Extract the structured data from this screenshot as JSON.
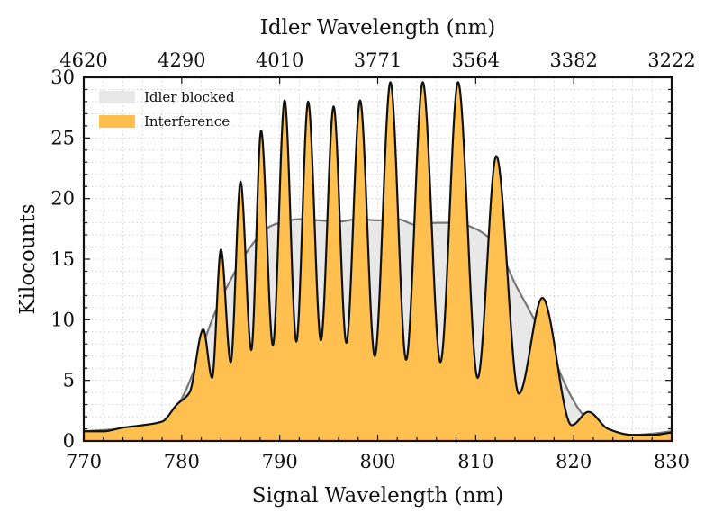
{
  "chart_data": {
    "type": "area",
    "title": "",
    "xlabel": "Signal Wavelength (nm)",
    "ylabel": "Kilocounts",
    "x2label": "Idler Wavelength (nm)",
    "xlim": [
      770,
      830
    ],
    "ylim": [
      0,
      30
    ],
    "grid": true,
    "legend_position": "top-left",
    "x_ticks": [
      "770",
      "780",
      "790",
      "800",
      "810",
      "820",
      "830"
    ],
    "y_ticks": [
      "0",
      "5",
      "10",
      "15",
      "20",
      "25",
      "30"
    ],
    "x2_ticks": [
      "4620",
      "4290",
      "4010",
      "3771",
      "3564",
      "3382",
      "3222"
    ],
    "series": [
      {
        "name": "Idler blocked",
        "color": "#e8e8e8",
        "line_color": "#777777",
        "x": [
          770,
          774,
          777,
          779,
          780,
          781,
          782,
          783,
          784,
          785,
          786,
          787,
          788,
          789,
          790,
          791,
          792,
          794,
          796,
          798,
          800,
          802,
          804,
          806,
          808,
          810,
          811,
          812,
          813,
          814,
          815,
          816,
          817,
          818,
          819,
          820,
          821,
          822,
          824,
          826,
          828,
          830
        ],
        "y": [
          0.8,
          1.0,
          1.2,
          2.2,
          3.5,
          5.3,
          7.5,
          9.8,
          11.7,
          13.3,
          14.8,
          16.0,
          17.0,
          17.7,
          18.0,
          18.2,
          18.3,
          18.2,
          18.1,
          18.3,
          18.2,
          18.3,
          17.8,
          18.0,
          18.0,
          17.5,
          17.0,
          16.3,
          14.8,
          13.0,
          11.5,
          10.0,
          8.5,
          6.8,
          4.9,
          3.3,
          2.1,
          1.3,
          0.8,
          0.5,
          0.6,
          0.8
        ]
      },
      {
        "name": "Interference",
        "color": "#ffc04f",
        "line_color": "#111111",
        "peaks": [
          {
            "x": 782.2,
            "y": 9.2
          },
          {
            "x": 784.0,
            "y": 15.8
          },
          {
            "x": 786.0,
            "y": 21.4
          },
          {
            "x": 788.1,
            "y": 25.6
          },
          {
            "x": 790.5,
            "y": 28.1
          },
          {
            "x": 792.9,
            "y": 28.0
          },
          {
            "x": 795.5,
            "y": 27.6
          },
          {
            "x": 798.2,
            "y": 28.1
          },
          {
            "x": 801.3,
            "y": 29.6
          },
          {
            "x": 804.6,
            "y": 29.6
          },
          {
            "x": 808.2,
            "y": 29.6
          },
          {
            "x": 812.1,
            "y": 23.5
          },
          {
            "x": 816.8,
            "y": 11.8
          },
          {
            "x": 821.5,
            "y": 2.4
          }
        ],
        "troughs": [
          {
            "x": 770.0,
            "y": 0.8
          },
          {
            "x": 772.0,
            "y": 0.8
          },
          {
            "x": 774.0,
            "y": 1.1
          },
          {
            "x": 776.0,
            "y": 1.3
          },
          {
            "x": 778.0,
            "y": 1.6
          },
          {
            "x": 779.5,
            "y": 3.0
          },
          {
            "x": 780.8,
            "y": 4.0
          },
          {
            "x": 783.1,
            "y": 5.2
          },
          {
            "x": 785.0,
            "y": 6.5
          },
          {
            "x": 787.1,
            "y": 7.5
          },
          {
            "x": 789.3,
            "y": 7.9
          },
          {
            "x": 791.7,
            "y": 8.2
          },
          {
            "x": 794.2,
            "y": 8.3
          },
          {
            "x": 796.8,
            "y": 8.1
          },
          {
            "x": 799.7,
            "y": 7.0
          },
          {
            "x": 802.9,
            "y": 6.7
          },
          {
            "x": 806.4,
            "y": 6.5
          },
          {
            "x": 810.2,
            "y": 5.2
          },
          {
            "x": 814.4,
            "y": 3.9
          },
          {
            "x": 819.8,
            "y": 1.3
          },
          {
            "x": 823.5,
            "y": 1.0
          },
          {
            "x": 826.0,
            "y": 0.5
          },
          {
            "x": 828.0,
            "y": 0.5
          },
          {
            "x": 830.0,
            "y": 0.7
          }
        ]
      }
    ]
  }
}
